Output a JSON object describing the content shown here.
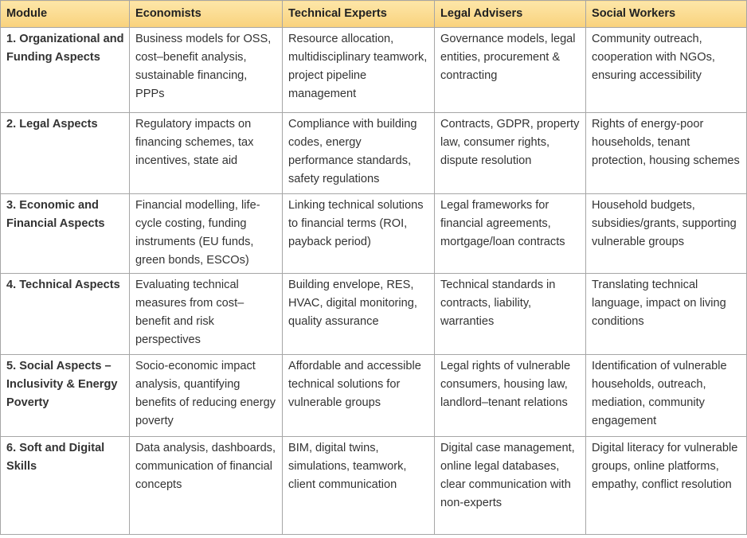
{
  "table": {
    "header": [
      "Module",
      "Economists",
      "Technical Experts",
      "Legal Advisers",
      "Social Workers"
    ],
    "rows": [
      [
        "1. Organizational and Funding Aspects",
        "Business models for OSS, cost–benefit analysis, sustainable financing, PPPs",
        "Resource allocation, multidisciplinary teamwork, project pipeline management",
        "Governance models, legal entities, procurement & contracting",
        "Community outreach, cooperation with NGOs, ensuring accessibility"
      ],
      [
        "2. Legal Aspects",
        "Regulatory impacts on financing schemes, tax incentives, state aid",
        "Compliance with building codes, energy performance standards, safety regulations",
        "Contracts, GDPR, property law, consumer rights, dispute resolution",
        "Rights of energy-poor households, tenant protection, housing schemes"
      ],
      [
        "3. Economic and Financial Aspects",
        "Financial modelling, life-cycle costing, funding instruments (EU funds, green bonds, ESCOs)",
        "Linking technical solutions to financial terms (ROI, payback period)",
        "Legal frameworks for financial agreements, mortgage/loan contracts",
        "Household budgets, subsidies/grants, supporting vulnerable groups"
      ],
      [
        "4. Technical Aspects",
        "Evaluating technical measures from cost–benefit and risk perspectives",
        "Building envelope, RES, HVAC, digital monitoring, quality assurance",
        "Technical standards in contracts, liability, warranties",
        "Translating technical language, impact on living conditions"
      ],
      [
        "5. Social Aspects – Inclusivity & Energy Poverty",
        "Socio-economic impact analysis, quantifying benefits of reducing energy poverty",
        "Affordable and accessible technical solutions for vulnerable groups",
        "Legal rights of vulnerable consumers, housing law, landlord–tenant relations",
        "Identification of vulnerable households, outreach, mediation, community engagement"
      ],
      [
        "6. Soft and Digital Skills",
        "Data analysis, dashboards, communication of financial concepts",
        "BIM, digital twins, simulations, teamwork, client communication",
        "Digital case management, online legal databases, clear communication with non-experts",
        "Digital literacy for vulnerable groups, online platforms, empathy, conflict resolution"
      ]
    ]
  }
}
